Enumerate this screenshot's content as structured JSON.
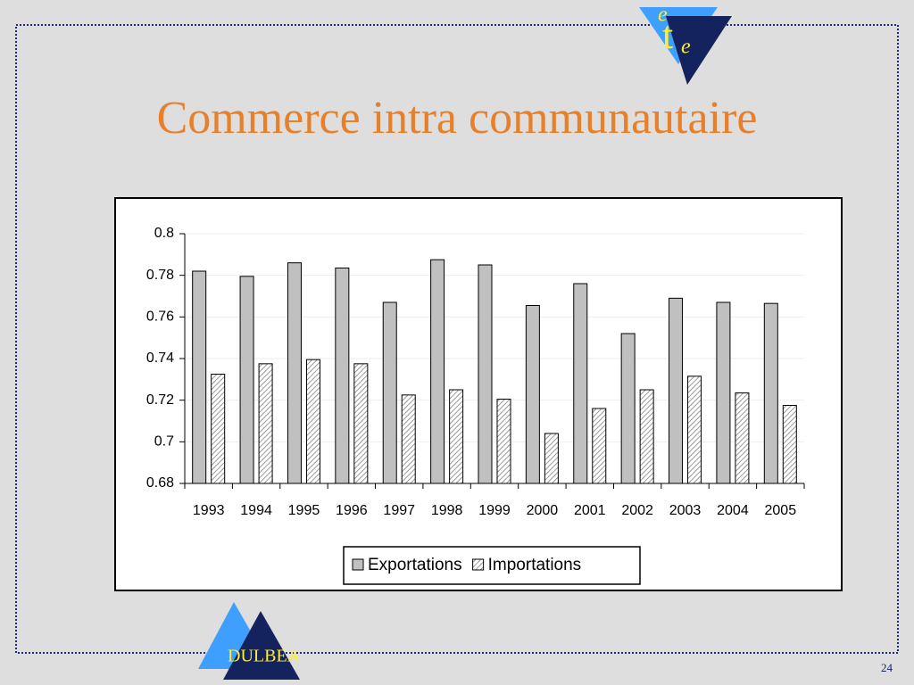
{
  "chart_data": {
    "type": "bar",
    "title": "Commerce intra communautaire",
    "categories": [
      "1993",
      "1994",
      "1995",
      "1996",
      "1997",
      "1998",
      "1999",
      "2000",
      "2001",
      "2002",
      "2003",
      "2004",
      "2005"
    ],
    "series": [
      {
        "name": "Exportations",
        "color": "#c0c0c0",
        "values": [
          0.782,
          0.7795,
          0.786,
          0.7835,
          0.767,
          0.7875,
          0.785,
          0.7655,
          0.776,
          0.752,
          0.769,
          0.767,
          0.7665
        ]
      },
      {
        "name": "Importations",
        "color": "#808080",
        "hatch": true,
        "values": [
          0.7325,
          0.7375,
          0.7395,
          0.7375,
          0.7225,
          0.725,
          0.7205,
          0.704,
          0.716,
          0.725,
          0.7315,
          0.7235,
          0.7175
        ]
      }
    ],
    "ylim": [
      0.68,
      0.8
    ],
    "yticks": [
      0.68,
      0.7,
      0.72,
      0.74,
      0.76,
      0.78,
      0.8
    ],
    "grid": true,
    "legend": "bottom"
  },
  "slide": {
    "logo_letters": [
      "e",
      "t",
      "e"
    ],
    "footer_logo": "DULBEA",
    "page_number": "24"
  }
}
